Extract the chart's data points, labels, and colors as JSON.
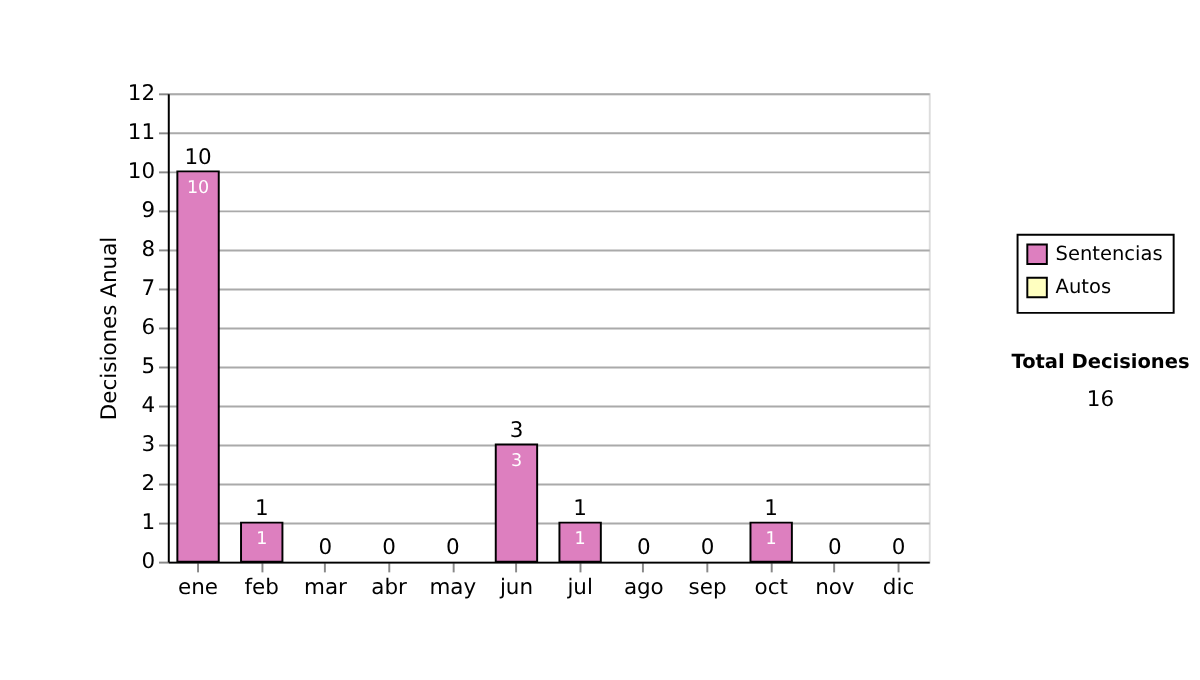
{
  "chart_data": {
    "type": "bar",
    "stacked": true,
    "ylabel": "Decisiones Anual",
    "categories": [
      "ene",
      "feb",
      "mar",
      "abr",
      "may",
      "jun",
      "jul",
      "ago",
      "sep",
      "oct",
      "nov",
      "dic"
    ],
    "series": [
      {
        "name": "Sentencias",
        "color": "#dd7fbf",
        "values": [
          10,
          1,
          0,
          0,
          0,
          3,
          1,
          0,
          0,
          1,
          0,
          0
        ],
        "value_labels": [
          "10",
          "1",
          null,
          null,
          null,
          "3",
          "1",
          null,
          null,
          "1",
          null,
          null
        ]
      },
      {
        "name": "Autos",
        "color": "#ffffc0",
        "values": [
          0,
          0,
          0,
          0,
          0,
          0,
          0,
          0,
          0,
          0,
          0,
          0
        ]
      }
    ],
    "totals": [
      "10",
      "1",
      "0",
      "0",
      "0",
      "3",
      "1",
      "0",
      "0",
      "1",
      "0",
      "0"
    ],
    "ylim": [
      0,
      12
    ],
    "yticks": [
      0,
      1,
      2,
      3,
      4,
      5,
      6,
      7,
      8,
      9,
      10,
      11,
      12
    ],
    "grid": "y",
    "legend": "right",
    "annotations": [
      "Total Decisiones",
      "16"
    ]
  }
}
